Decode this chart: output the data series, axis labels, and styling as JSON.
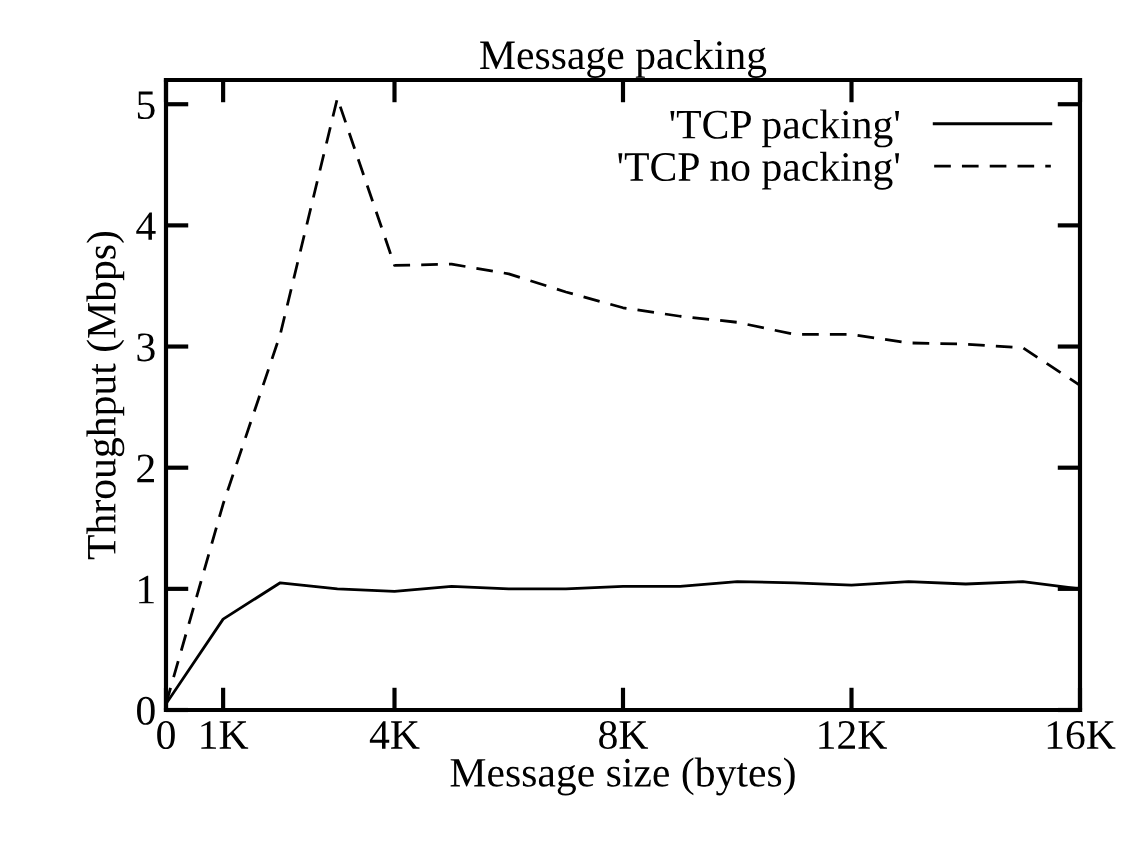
{
  "chart_data": {
    "type": "line",
    "title": "Message packing",
    "xlabel": "Message size (bytes)",
    "ylabel": "Throughput (Mbps)",
    "x": [
      0,
      1,
      2,
      3,
      4,
      5,
      6,
      7,
      8,
      9,
      10,
      11,
      12,
      13,
      14,
      15,
      16
    ],
    "series": [
      {
        "name": "'TCP packing'",
        "color": "#000000",
        "line_style": "solid",
        "values": [
          0.05,
          0.75,
          1.05,
          1.0,
          0.98,
          1.02,
          1.0,
          1.0,
          1.02,
          1.02,
          1.06,
          1.05,
          1.03,
          1.06,
          1.04,
          1.06,
          1.0
        ]
      },
      {
        "name": "'TCP no packing'",
        "color": "#000000",
        "line_style": "dashed",
        "values": [
          0.05,
          1.7,
          3.1,
          5.05,
          3.67,
          3.68,
          3.6,
          3.45,
          3.32,
          3.25,
          3.2,
          3.1,
          3.1,
          3.03,
          3.02,
          2.99,
          2.68
        ]
      }
    ],
    "xlim": [
      0,
      16
    ],
    "xticks": [
      0,
      {
        "value": 1,
        "label": "1K"
      },
      {
        "value": 4,
        "label": "4K"
      },
      {
        "value": 8,
        "label": "8K"
      },
      {
        "value": 12,
        "label": "12K"
      },
      {
        "value": 16,
        "label": "16K"
      }
    ],
    "ylim": [
      0,
      5.2
    ],
    "yticks": [
      0,
      1,
      2,
      3,
      4,
      5
    ],
    "grid": false,
    "legend": "top right",
    "marker": "none"
  }
}
